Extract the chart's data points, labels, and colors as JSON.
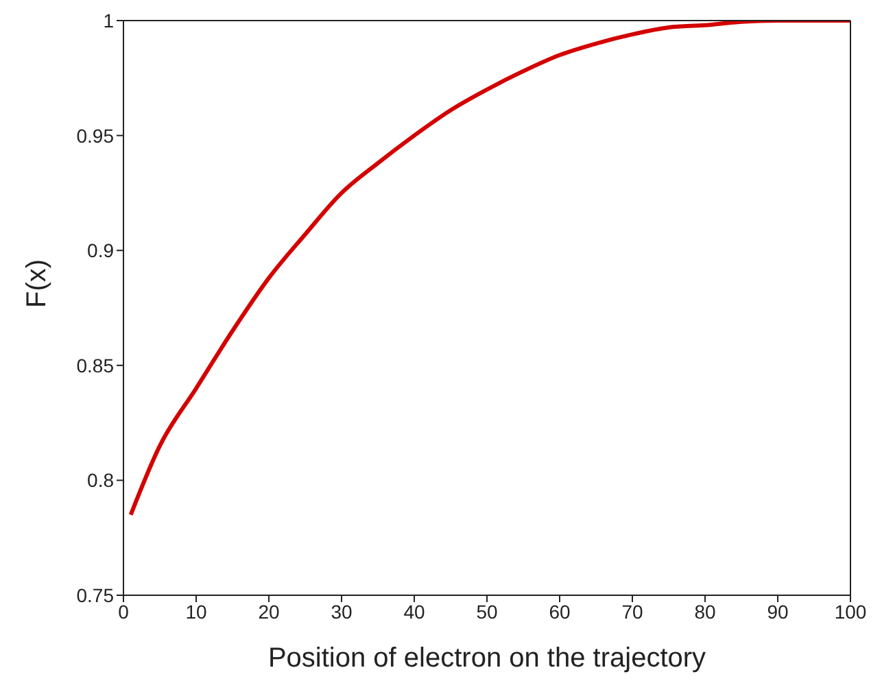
{
  "chart_data": {
    "type": "line",
    "xlabel": "Position of electron on the trajectory",
    "ylabel": "F(x)",
    "x": [
      1,
      5,
      10,
      15,
      20,
      25,
      30,
      35,
      40,
      45,
      50,
      55,
      60,
      65,
      70,
      75,
      80,
      85,
      90,
      95,
      100
    ],
    "series": [
      {
        "color": "#d40000",
        "values": [
          0.785,
          0.815,
          0.84,
          0.865,
          0.888,
          0.907,
          0.925,
          0.938,
          0.95,
          0.961,
          0.97,
          0.978,
          0.985,
          0.99,
          0.994,
          0.997,
          0.998,
          0.9995,
          1,
          1,
          1
        ]
      }
    ],
    "xlim": [
      0,
      100
    ],
    "xticks": [
      0,
      10,
      20,
      30,
      40,
      50,
      60,
      70,
      80,
      90,
      100
    ],
    "ylim": [
      0.75,
      1
    ],
    "yticks": [
      0.75,
      0.8,
      0.85,
      0.9,
      0.95,
      1
    ],
    "grid": false,
    "legend": false,
    "marker": "none",
    "line_style": "solid"
  }
}
